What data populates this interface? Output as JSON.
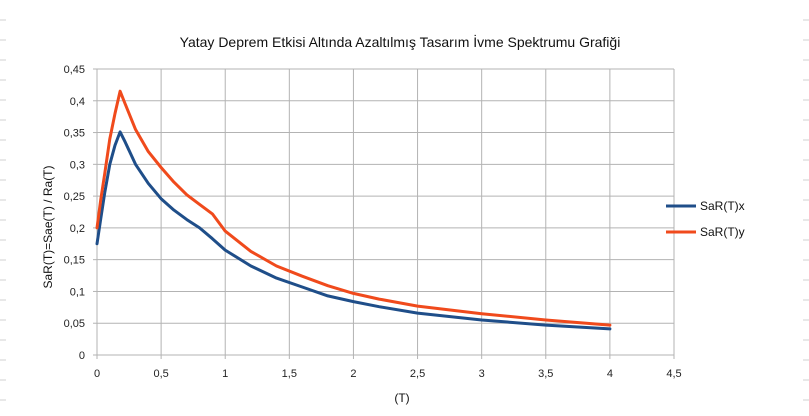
{
  "chart_data": {
    "type": "line",
    "title": "Yatay Deprem Etkisi Altında Azaltılmış  Tasarım İvme Spektrumu Grafiği",
    "xlabel": "(T)",
    "ylabel": "SaR(T)=Sae(T) / Ra(T)",
    "xlim": [
      0,
      4.5
    ],
    "ylim": [
      0,
      0.45
    ],
    "x_ticks": [
      "0",
      "0,5",
      "1",
      "1,5",
      "2",
      "2,5",
      "3",
      "3,5",
      "4",
      "4,5"
    ],
    "y_ticks": [
      "0",
      "0,05",
      "0,1",
      "0,15",
      "0,2",
      "0,25",
      "0,3",
      "0,35",
      "0,4",
      "0,45"
    ],
    "grid": true,
    "legend_position": "right",
    "series": [
      {
        "name": "SaR(T)x",
        "color": "#1f4e89",
        "x": [
          0,
          0.03,
          0.06,
          0.1,
          0.14,
          0.18,
          0.22,
          0.3,
          0.4,
          0.5,
          0.6,
          0.7,
          0.8,
          0.9,
          1.0,
          1.2,
          1.4,
          1.6,
          1.8,
          2.0,
          2.2,
          2.5,
          3.0,
          3.5,
          4.0
        ],
        "values": [
          0.175,
          0.215,
          0.255,
          0.3,
          0.33,
          0.351,
          0.335,
          0.3,
          0.27,
          0.246,
          0.228,
          0.213,
          0.2,
          0.183,
          0.165,
          0.14,
          0.121,
          0.107,
          0.093,
          0.084,
          0.076,
          0.066,
          0.055,
          0.047,
          0.041
        ]
      },
      {
        "name": "SaR(T)y",
        "color": "#f04a1c",
        "x": [
          0,
          0.03,
          0.06,
          0.1,
          0.14,
          0.18,
          0.22,
          0.3,
          0.4,
          0.5,
          0.6,
          0.7,
          0.8,
          0.9,
          1.0,
          1.2,
          1.4,
          1.6,
          1.8,
          2.0,
          2.2,
          2.5,
          3.0,
          3.5,
          4.0
        ],
        "values": [
          0.2,
          0.245,
          0.285,
          0.34,
          0.38,
          0.415,
          0.395,
          0.355,
          0.32,
          0.295,
          0.272,
          0.252,
          0.237,
          0.222,
          0.195,
          0.163,
          0.14,
          0.124,
          0.109,
          0.097,
          0.088,
          0.077,
          0.065,
          0.055,
          0.047
        ]
      }
    ]
  }
}
